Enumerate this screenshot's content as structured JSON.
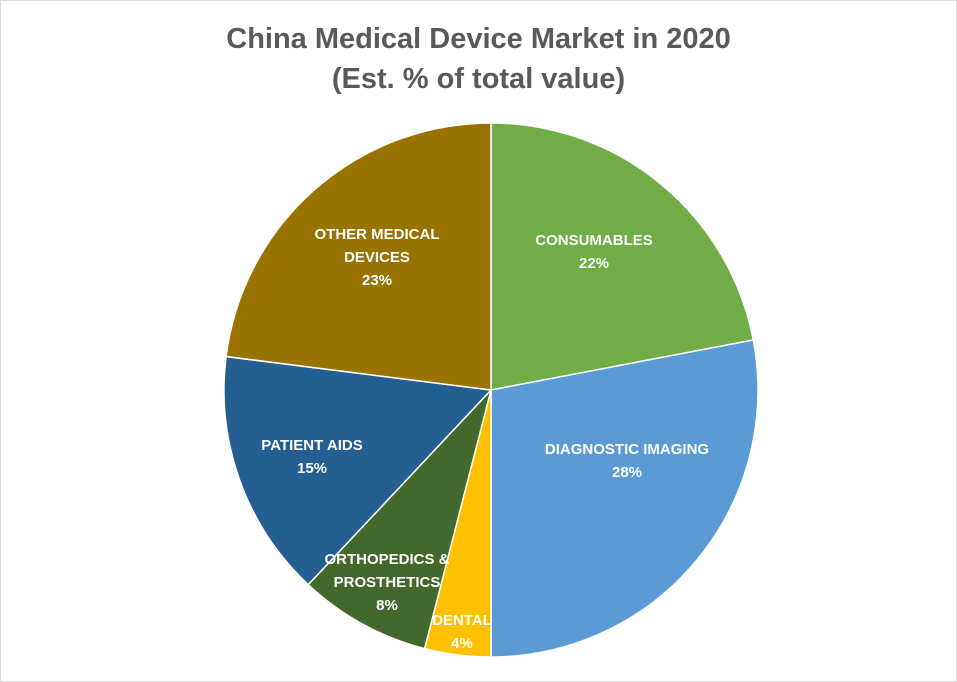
{
  "chart_data": {
    "type": "pie",
    "title": "China Medical Device Market in 2020",
    "subtitle": "(Est. % of total value)",
    "categories": [
      "CONSUMABLES",
      "DIAGNOSTIC IMAGING",
      "DENTAL",
      "ORTHOPEDICS & PROSTHETICS",
      "PATIENT AIDS",
      "OTHER MEDICAL DEVICES"
    ],
    "values": [
      22,
      28,
      4,
      8,
      15,
      23
    ],
    "labels": [
      "22%",
      "28%",
      "4%",
      "8%",
      "15%",
      "23%"
    ],
    "colors": [
      "#70AD47",
      "#5B9BD5",
      "#FFC000",
      "#43682B",
      "#255E91",
      "#997300"
    ],
    "legend": "none"
  }
}
